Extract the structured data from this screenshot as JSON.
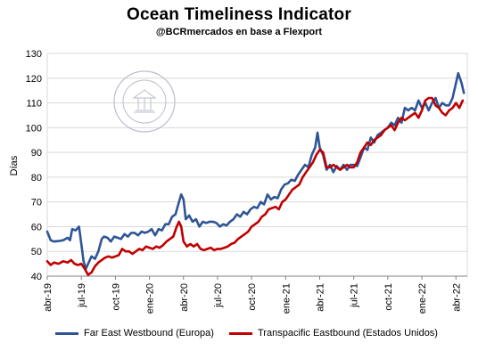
{
  "chart_data": {
    "type": "line",
    "title": "Ocean Timeliness Indicator",
    "subtitle": "@BCRmercados en base a Flexport",
    "ylabel": "Días",
    "ylim": [
      40,
      130
    ],
    "yticks": [
      40,
      50,
      60,
      70,
      80,
      90,
      100,
      110,
      120,
      130
    ],
    "xticks": [
      "abr-19",
      "jul-19",
      "oct-19",
      "ene-20",
      "abr-20",
      "jul-20",
      "oct-20",
      "ene-21",
      "abr-21",
      "jul-21",
      "oct-21",
      "ene-22",
      "abr-22"
    ],
    "x_months_from_start": [
      0,
      3,
      6,
      9,
      12,
      15,
      18,
      21,
      24,
      27,
      30,
      33,
      36
    ],
    "grid": "horizontal",
    "legend_position": "bottom",
    "series": [
      {
        "name": "Far East Westbound (Europa)",
        "color": "#2F5597",
        "points": [
          [
            0,
            58
          ],
          [
            0.3,
            54.5
          ],
          [
            0.6,
            54
          ],
          [
            1.0,
            54.2
          ],
          [
            1.4,
            54.5
          ],
          [
            1.8,
            55.5
          ],
          [
            2.0,
            54.5
          ],
          [
            2.2,
            59
          ],
          [
            2.5,
            58.5
          ],
          [
            2.8,
            60
          ],
          [
            3.0,
            53
          ],
          [
            3.2,
            46
          ],
          [
            3.4,
            43
          ],
          [
            3.6,
            45
          ],
          [
            3.9,
            48
          ],
          [
            4.2,
            47
          ],
          [
            4.5,
            50
          ],
          [
            4.8,
            55
          ],
          [
            5.0,
            56
          ],
          [
            5.3,
            55.5
          ],
          [
            5.6,
            54
          ],
          [
            5.9,
            56
          ],
          [
            6.2,
            55.5
          ],
          [
            6.5,
            55
          ],
          [
            6.8,
            57
          ],
          [
            7.1,
            56
          ],
          [
            7.4,
            57.5
          ],
          [
            7.7,
            57.5
          ],
          [
            8.0,
            56.5
          ],
          [
            8.3,
            58
          ],
          [
            8.6,
            57.5
          ],
          [
            8.9,
            58
          ],
          [
            9.2,
            59
          ],
          [
            9.5,
            56.5
          ],
          [
            9.8,
            59
          ],
          [
            10.1,
            58.5
          ],
          [
            10.4,
            61
          ],
          [
            10.7,
            61
          ],
          [
            11.0,
            64
          ],
          [
            11.3,
            65
          ],
          [
            11.6,
            70
          ],
          [
            11.8,
            73
          ],
          [
            12.0,
            71
          ],
          [
            12.2,
            63
          ],
          [
            12.5,
            64.5
          ],
          [
            12.8,
            62
          ],
          [
            13.1,
            63
          ],
          [
            13.4,
            60
          ],
          [
            13.7,
            62
          ],
          [
            14.0,
            61.5
          ],
          [
            14.3,
            62
          ],
          [
            14.6,
            62
          ],
          [
            14.9,
            61.5
          ],
          [
            15.2,
            60
          ],
          [
            15.5,
            61
          ],
          [
            15.8,
            60.5
          ],
          [
            16.1,
            62
          ],
          [
            16.4,
            63
          ],
          [
            16.7,
            65
          ],
          [
            17.0,
            64
          ],
          [
            17.3,
            66
          ],
          [
            17.6,
            65
          ],
          [
            17.9,
            67
          ],
          [
            18.2,
            68
          ],
          [
            18.5,
            67.5
          ],
          [
            18.8,
            70
          ],
          [
            19.1,
            69
          ],
          [
            19.4,
            73
          ],
          [
            19.7,
            71
          ],
          [
            20.0,
            72
          ],
          [
            20.3,
            71.5
          ],
          [
            20.6,
            75
          ],
          [
            20.9,
            77
          ],
          [
            21.2,
            77.5
          ],
          [
            21.5,
            79
          ],
          [
            21.8,
            78.5
          ],
          [
            22.1,
            81
          ],
          [
            22.4,
            83
          ],
          [
            22.7,
            85
          ],
          [
            23.0,
            84
          ],
          [
            23.3,
            89
          ],
          [
            23.6,
            92
          ],
          [
            23.8,
            98
          ],
          [
            24.0,
            92
          ],
          [
            24.3,
            89
          ],
          [
            24.6,
            83
          ],
          [
            24.9,
            85
          ],
          [
            25.2,
            82
          ],
          [
            25.5,
            84.5
          ],
          [
            25.8,
            83
          ],
          [
            26.1,
            85
          ],
          [
            26.4,
            83
          ],
          [
            26.7,
            85
          ],
          [
            27.0,
            85
          ],
          [
            27.3,
            84.5
          ],
          [
            27.6,
            88
          ],
          [
            27.9,
            92
          ],
          [
            28.2,
            91
          ],
          [
            28.5,
            96
          ],
          [
            28.8,
            94
          ],
          [
            29.1,
            97
          ],
          [
            29.4,
            98
          ],
          [
            29.7,
            99
          ],
          [
            30.0,
            100
          ],
          [
            30.3,
            102
          ],
          [
            30.6,
            101
          ],
          [
            30.9,
            104
          ],
          [
            31.2,
            102
          ],
          [
            31.5,
            108
          ],
          [
            31.8,
            107
          ],
          [
            32.1,
            108
          ],
          [
            32.4,
            107
          ],
          [
            32.7,
            111
          ],
          [
            33.0,
            108
          ],
          [
            33.3,
            110
          ],
          [
            33.6,
            107
          ],
          [
            33.9,
            110
          ],
          [
            34.2,
            112
          ],
          [
            34.5,
            108
          ],
          [
            34.8,
            110
          ],
          [
            35.1,
            109
          ],
          [
            35.4,
            109
          ],
          [
            35.7,
            112
          ],
          [
            36.0,
            118
          ],
          [
            36.2,
            122
          ],
          [
            36.5,
            118
          ],
          [
            36.7,
            114
          ]
        ]
      },
      {
        "name": "Transpacific Eastbound (Estados Unidos)",
        "color": "#C00000",
        "points": [
          [
            0,
            46
          ],
          [
            0.3,
            44.5
          ],
          [
            0.6,
            45.5
          ],
          [
            1.0,
            45
          ],
          [
            1.4,
            46
          ],
          [
            1.8,
            45.5
          ],
          [
            2.1,
            46.5
          ],
          [
            2.4,
            45
          ],
          [
            2.7,
            44.5
          ],
          [
            3.0,
            45
          ],
          [
            3.3,
            43
          ],
          [
            3.6,
            40.5
          ],
          [
            3.9,
            41.5
          ],
          [
            4.2,
            44
          ],
          [
            4.5,
            45.5
          ],
          [
            4.8,
            46.5
          ],
          [
            5.1,
            47.5
          ],
          [
            5.4,
            48
          ],
          [
            5.7,
            47.5
          ],
          [
            6.0,
            48
          ],
          [
            6.3,
            48.5
          ],
          [
            6.6,
            51
          ],
          [
            6.9,
            50
          ],
          [
            7.2,
            50
          ],
          [
            7.5,
            49
          ],
          [
            7.8,
            50
          ],
          [
            8.1,
            51
          ],
          [
            8.4,
            50.5
          ],
          [
            8.7,
            52
          ],
          [
            9.0,
            51.5
          ],
          [
            9.3,
            51
          ],
          [
            9.6,
            52
          ],
          [
            9.9,
            51.5
          ],
          [
            10.2,
            52.5
          ],
          [
            10.5,
            54
          ],
          [
            10.8,
            55
          ],
          [
            11.1,
            56
          ],
          [
            11.4,
            60
          ],
          [
            11.6,
            62
          ],
          [
            11.8,
            60
          ],
          [
            12.0,
            54
          ],
          [
            12.3,
            52
          ],
          [
            12.6,
            53
          ],
          [
            12.9,
            52
          ],
          [
            13.2,
            53
          ],
          [
            13.5,
            51
          ],
          [
            13.8,
            50.5
          ],
          [
            14.1,
            51
          ],
          [
            14.4,
            51.5
          ],
          [
            14.7,
            50.5
          ],
          [
            15.0,
            51
          ],
          [
            15.3,
            51
          ],
          [
            15.6,
            51.5
          ],
          [
            15.9,
            52
          ],
          [
            16.2,
            53
          ],
          [
            16.5,
            53.5
          ],
          [
            16.8,
            55
          ],
          [
            17.1,
            56
          ],
          [
            17.4,
            57
          ],
          [
            17.7,
            58
          ],
          [
            18.0,
            60
          ],
          [
            18.3,
            61
          ],
          [
            18.6,
            62
          ],
          [
            18.9,
            64
          ],
          [
            19.2,
            65
          ],
          [
            19.5,
            67
          ],
          [
            19.8,
            67.5
          ],
          [
            20.1,
            68
          ],
          [
            20.4,
            67
          ],
          [
            20.7,
            70
          ],
          [
            21.0,
            71
          ],
          [
            21.3,
            73
          ],
          [
            21.6,
            75
          ],
          [
            21.9,
            76
          ],
          [
            22.2,
            77
          ],
          [
            22.5,
            80
          ],
          [
            22.8,
            82
          ],
          [
            23.1,
            84
          ],
          [
            23.4,
            86
          ],
          [
            23.7,
            89
          ],
          [
            24.0,
            91
          ],
          [
            24.3,
            90
          ],
          [
            24.6,
            84
          ],
          [
            24.9,
            84
          ],
          [
            25.2,
            85
          ],
          [
            25.5,
            84
          ],
          [
            25.8,
            83
          ],
          [
            26.1,
            84
          ],
          [
            26.4,
            85
          ],
          [
            26.7,
            84
          ],
          [
            27.0,
            84
          ],
          [
            27.3,
            86
          ],
          [
            27.6,
            90
          ],
          [
            27.9,
            92
          ],
          [
            28.2,
            94
          ],
          [
            28.5,
            93
          ],
          [
            28.8,
            95
          ],
          [
            29.1,
            96
          ],
          [
            29.4,
            97
          ],
          [
            29.7,
            99
          ],
          [
            30.0,
            100
          ],
          [
            30.3,
            101
          ],
          [
            30.6,
            99
          ],
          [
            30.9,
            102
          ],
          [
            31.2,
            104
          ],
          [
            31.5,
            103
          ],
          [
            31.8,
            104
          ],
          [
            32.1,
            105
          ],
          [
            32.4,
            106
          ],
          [
            32.7,
            104
          ],
          [
            33.0,
            107
          ],
          [
            33.3,
            111
          ],
          [
            33.6,
            112
          ],
          [
            33.9,
            112
          ],
          [
            34.2,
            109
          ],
          [
            34.5,
            108
          ],
          [
            34.8,
            106
          ],
          [
            35.1,
            105
          ],
          [
            35.4,
            107
          ],
          [
            35.7,
            108
          ],
          [
            36.0,
            110
          ],
          [
            36.3,
            108
          ],
          [
            36.6,
            111
          ]
        ]
      }
    ]
  }
}
